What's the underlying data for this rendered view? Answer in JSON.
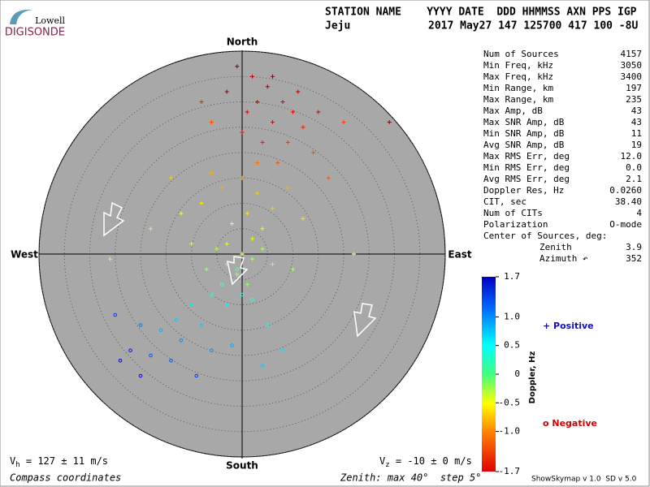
{
  "chart_data": {
    "type": "skymap",
    "logo": {
      "top": "Lowell",
      "bottom": "DIGISONDE"
    },
    "header": {
      "line1": "STATION NAME    YYYY DATE  DDD HHMMSS AXN PPS IGP",
      "station": "Jeju",
      "stamp": "2017 May27 147 125700 417 100 -8U"
    },
    "directions": {
      "north": "North",
      "south": "South",
      "west": "West",
      "east": "East"
    },
    "rlim": [
      0,
      40
    ],
    "rings": [
      5,
      10,
      15,
      20,
      25,
      30,
      35,
      40
    ],
    "stats": [
      [
        "Num of Sources",
        "4157"
      ],
      [
        "Min Freq, kHz",
        "3050"
      ],
      [
        "Max Freq, kHz",
        "3400"
      ],
      [
        "Min Range, km",
        "197"
      ],
      [
        "Max Range, km",
        "235"
      ],
      [
        "Max Amp, dB",
        "43"
      ],
      [
        "Max SNR Amp, dB",
        "43"
      ],
      [
        "Min SNR Amp, dB",
        "11"
      ],
      [
        "Avg SNR Amp, dB",
        "19"
      ],
      [
        "Max RMS Err, deg",
        "12.0"
      ],
      [
        "Min RMS Err, deg",
        "0.0"
      ],
      [
        "Avg RMS Err, deg",
        "2.1"
      ],
      [
        "Doppler Res, Hz",
        "0.0260"
      ],
      [
        "CIT, sec",
        "38.40"
      ],
      [
        "Num of CITs",
        "4"
      ],
      [
        "Polarization",
        "O-mode"
      ]
    ],
    "center": {
      "title": "Center of Sources, deg:",
      "zenith_label": "Zenith",
      "zenith": "3.9",
      "azimuth_label": "Azimuth ↶",
      "azimuth": "352"
    },
    "colorbar": {
      "label": "Doppler, Hz",
      "lim": [
        -1.7,
        1.7
      ],
      "ticks": [
        1.7,
        {
          "value": 1,
          "label": "1.0"
        },
        0.5,
        0,
        -0.5,
        {
          "value": -1,
          "label": "-1.0"
        },
        -1.7
      ]
    },
    "legend": {
      "positive": "+ Positive",
      "negative": "o Negative"
    },
    "footer": {
      "vh_symbol": "V",
      "vh_sub": "h",
      "vh_text": " = 127 ± 11 m/s",
      "vz_symbol": "V",
      "vz_sub": "z",
      "vz_text": " = -10 ± 0 m/s",
      "coords": "Compass coordinates",
      "zenith": "Zenith: max 40°  step 5°",
      "version": "ShowSkymap v 1.0  SD v 5.0"
    },
    "points": [
      [
        2,
        35,
        1.5
      ],
      [
        5,
        33,
        1.6
      ],
      [
        8,
        30,
        1.4
      ],
      [
        10,
        28,
        1.3
      ],
      [
        3,
        30,
        1.5
      ],
      [
        12,
        25,
        1.2
      ],
      [
        6,
        26,
        1.3
      ],
      [
        1,
        28,
        1.4
      ],
      [
        -3,
        32,
        1.6
      ],
      [
        -8,
        30,
        1.2
      ],
      [
        9,
        22,
        1.1
      ],
      [
        4,
        22,
        1.2
      ],
      [
        14,
        20,
        1.0
      ],
      [
        7,
        18,
        1.0
      ],
      [
        0,
        24,
        1.3
      ],
      [
        17,
        15,
        1.0
      ],
      [
        11,
        32,
        1.5
      ],
      [
        -1,
        37,
        1.7
      ],
      [
        15,
        28,
        1.4
      ],
      [
        20,
        26,
        1.1
      ],
      [
        -6,
        26,
        1.0
      ],
      [
        3,
        18,
        0.9
      ],
      [
        29,
        26,
        1.6
      ],
      [
        6,
        35,
        1.6
      ],
      [
        0,
        15,
        0.8
      ],
      [
        -4,
        13,
        0.7
      ],
      [
        3,
        12,
        0.6
      ],
      [
        -8,
        10,
        0.5
      ],
      [
        6,
        9,
        0.6
      ],
      [
        1,
        8,
        0.5
      ],
      [
        -2,
        6,
        0.4
      ],
      [
        -6,
        16,
        0.7
      ],
      [
        9,
        13,
        0.7
      ],
      [
        -12,
        8,
        0.4
      ],
      [
        4,
        5,
        0.4
      ],
      [
        -14,
        15,
        0.6
      ],
      [
        2,
        3,
        0.3
      ],
      [
        -3,
        2,
        0.3
      ],
      [
        12,
        7,
        0.5
      ],
      [
        0,
        0,
        0.2
      ],
      [
        -3,
        -2,
        0.1
      ],
      [
        2,
        -1,
        0.1
      ],
      [
        -5,
        1,
        0.2
      ],
      [
        4,
        1,
        0.2
      ],
      [
        -1,
        -4,
        0.05
      ],
      [
        -7,
        -3,
        0.1
      ],
      [
        6,
        -2,
        0.1
      ],
      [
        1,
        -6,
        0.05
      ],
      [
        -10,
        2,
        0.2
      ],
      [
        -26,
        -1,
        0.2
      ],
      [
        -18,
        5,
        0.3
      ],
      [
        10,
        -3,
        0.1
      ],
      [
        22,
        0,
        0.2
      ],
      [
        -1,
        -3,
        -0.1
      ],
      [
        -4,
        -6,
        -0.2
      ],
      [
        0,
        -8,
        -0.3
      ],
      [
        -6,
        -8,
        -0.3
      ],
      [
        -10,
        -10,
        -0.5
      ],
      [
        -13,
        -13,
        -0.6
      ],
      [
        -16,
        -15,
        -0.7
      ],
      [
        -12,
        -17,
        -0.8
      ],
      [
        -20,
        -14,
        -0.9
      ],
      [
        -8,
        -14,
        -0.6
      ],
      [
        -3,
        -10,
        -0.4
      ],
      [
        2,
        -9,
        -0.3
      ],
      [
        -18,
        -20,
        -1.0
      ],
      [
        -22,
        -19,
        -1.2
      ],
      [
        -14,
        -21,
        -1.0
      ],
      [
        -6,
        -19,
        -0.8
      ],
      [
        -2,
        -18,
        -0.7
      ],
      [
        5,
        -14,
        -0.4
      ],
      [
        -25,
        -12,
        -1.1
      ],
      [
        -9,
        -24,
        -1.1
      ],
      [
        4,
        -22,
        -0.6
      ],
      [
        -20,
        -24,
        -1.3
      ],
      [
        8,
        -19,
        -0.5
      ],
      [
        -24,
        -21,
        -1.4
      ]
    ]
  }
}
